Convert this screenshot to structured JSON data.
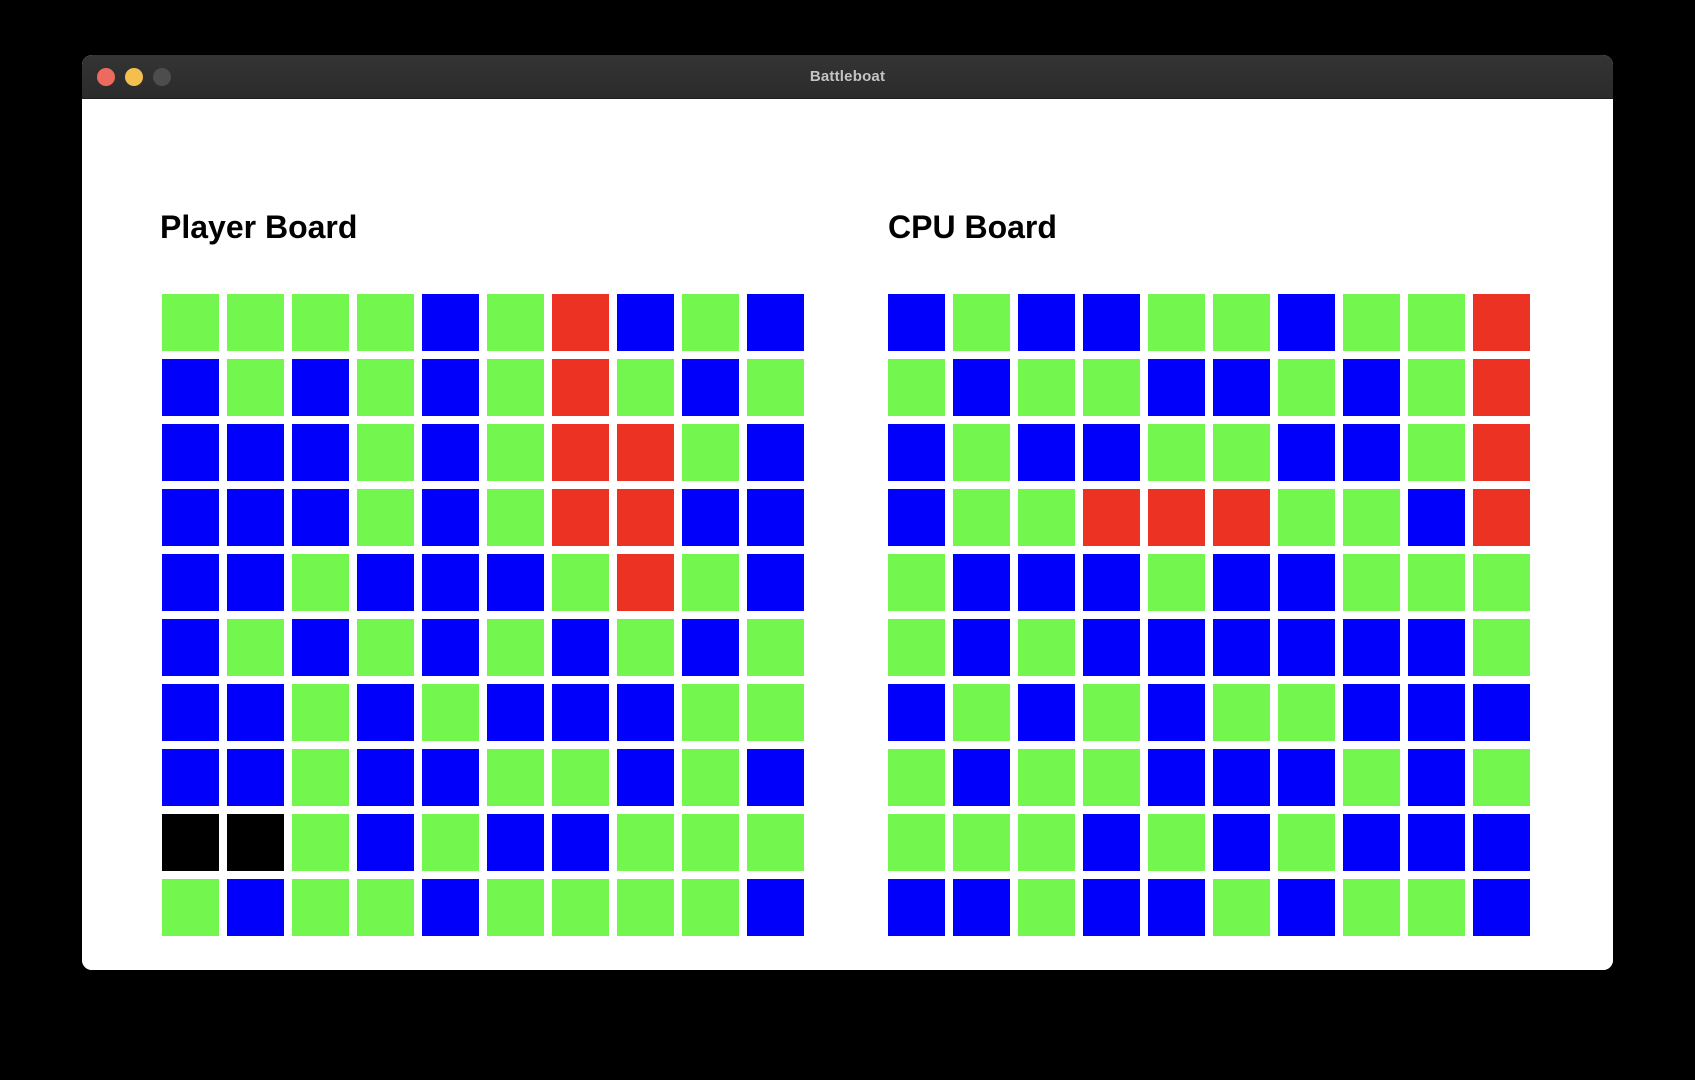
{
  "window": {
    "title": "Battleboat",
    "traffic_lights": [
      {
        "name": "close",
        "color": "#ed6a5e"
      },
      {
        "name": "minimize",
        "color": "#f5bf4f"
      },
      {
        "name": "zoom",
        "color": "#4d4d4d"
      }
    ]
  },
  "colors": {
    "G": "#73f64e",
    "B": "#0000fb",
    "R": "#ec3323",
    "K": "#000000"
  },
  "boards": {
    "player": {
      "title": "Player Board",
      "rows": [
        "GGGGBGRBGB",
        "BGBGBGRGBG",
        "BBBGBGRRGB",
        "BBBGBGRRBB",
        "BBGBBBGRGB",
        "BGBGBGBGBG",
        "BBGBGBBBGG",
        "BBGBBGGBGB",
        "KKGBGBBGGG",
        "GBGGBGGGGB"
      ]
    },
    "cpu": {
      "title": "CPU Board",
      "rows": [
        "BGBBGGBGGR",
        "GBGGBBGBGR",
        "BGBBGGBBGR",
        "BGGRRRGGBR",
        "GBBBGBBGGG",
        "GBGBBBBBBG",
        "BGBGBGGBBB",
        "GBGGBBBGBG",
        "GGGBGBGBBB",
        "BBGBBGBGGB"
      ]
    }
  }
}
